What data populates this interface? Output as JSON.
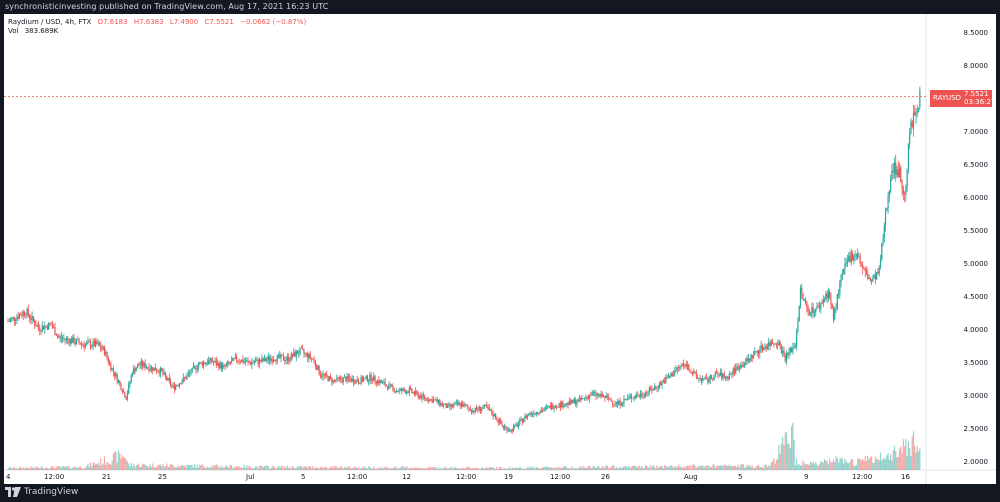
{
  "header": {
    "publisher_line": "synchronisticinvesting published on TradingView.com, Aug 17, 2021 16:23 UTC"
  },
  "legend": {
    "symbol": "Raydium / USD, 4h, FTX",
    "open": "O7.6183",
    "high": "H7.6383",
    "low": "L7.4900",
    "close": "C7.5521",
    "change": "−0.0662 (−0.87%)",
    "volume_label": "Vol",
    "volume_value": "383.689K"
  },
  "price_badge": {
    "symbol": "RAYUSD",
    "price": "7.5521",
    "countdown": "03:36:27",
    "color": "#ef5350"
  },
  "price_axis": [
    "8.5000",
    "8.0000",
    "7.5000",
    "7.0000",
    "6.5000",
    "6.0000",
    "5.5000",
    "5.0000",
    "4.5000",
    "4.0000",
    "3.5000",
    "3.0000",
    "2.5000",
    "2.0000"
  ],
  "time_axis": [
    "4",
    "12:00",
    "21",
    "25",
    "Jul",
    "5",
    "12:00",
    "12",
    "12:00",
    "19",
    "12:00",
    "26",
    "Aug",
    "5",
    "9",
    "12:00",
    "16"
  ],
  "footer": {
    "brand": "TradingView",
    "logo_icon": "tradingview-logo-icon"
  },
  "colors": {
    "up": "#26a69a",
    "down": "#ef5350",
    "background": "#131722",
    "pane": "#ffffff"
  },
  "chart_data": {
    "type": "candlestick",
    "title": "Raydium / USD, 4h, FTX",
    "ylim": [
      1.9,
      8.8
    ],
    "y_ticks": [
      2.0,
      2.5,
      3.0,
      3.5,
      4.0,
      4.5,
      5.0,
      5.5,
      6.0,
      6.5,
      7.0,
      7.5,
      8.0,
      8.5
    ],
    "last_price": 7.5521,
    "close_path": [
      [
        0,
        4.15
      ],
      [
        14,
        4.3
      ],
      [
        24,
        4.05
      ],
      [
        34,
        4.1
      ],
      [
        40,
        3.9
      ],
      [
        52,
        3.85
      ],
      [
        60,
        3.8
      ],
      [
        70,
        3.8
      ],
      [
        76,
        3.7
      ],
      [
        80,
        3.5
      ],
      [
        88,
        3.2
      ],
      [
        93,
        3.0
      ],
      [
        98,
        3.4
      ],
      [
        104,
        3.5
      ],
      [
        112,
        3.45
      ],
      [
        120,
        3.4
      ],
      [
        130,
        3.15
      ],
      [
        140,
        3.3
      ],
      [
        150,
        3.5
      ],
      [
        160,
        3.55
      ],
      [
        170,
        3.45
      ],
      [
        180,
        3.58
      ],
      [
        190,
        3.52
      ],
      [
        200,
        3.55
      ],
      [
        210,
        3.6
      ],
      [
        220,
        3.58
      ],
      [
        230,
        3.7
      ],
      [
        240,
        3.58
      ],
      [
        246,
        3.35
      ],
      [
        256,
        3.25
      ],
      [
        266,
        3.28
      ],
      [
        276,
        3.25
      ],
      [
        286,
        3.3
      ],
      [
        296,
        3.2
      ],
      [
        306,
        3.1
      ],
      [
        316,
        3.1
      ],
      [
        326,
        3.0
      ],
      [
        336,
        2.95
      ],
      [
        346,
        2.85
      ],
      [
        356,
        2.9
      ],
      [
        366,
        2.8
      ],
      [
        376,
        2.85
      ],
      [
        384,
        2.7
      ],
      [
        390,
        2.55
      ],
      [
        396,
        2.5
      ],
      [
        402,
        2.6
      ],
      [
        410,
        2.75
      ],
      [
        420,
        2.8
      ],
      [
        430,
        2.88
      ],
      [
        440,
        2.9
      ],
      [
        450,
        2.95
      ],
      [
        460,
        3.05
      ],
      [
        470,
        3.0
      ],
      [
        480,
        2.9
      ],
      [
        490,
        3.0
      ],
      [
        500,
        3.05
      ],
      [
        510,
        3.15
      ],
      [
        520,
        3.3
      ],
      [
        528,
        3.45
      ],
      [
        534,
        3.5
      ],
      [
        542,
        3.3
      ],
      [
        550,
        3.25
      ],
      [
        558,
        3.35
      ],
      [
        566,
        3.3
      ],
      [
        574,
        3.45
      ],
      [
        582,
        3.55
      ],
      [
        590,
        3.7
      ],
      [
        598,
        3.8
      ],
      [
        606,
        3.85
      ],
      [
        612,
        3.6
      ],
      [
        620,
        3.8
      ],
      [
        624,
        4.6
      ],
      [
        630,
        4.3
      ],
      [
        638,
        4.35
      ],
      [
        646,
        4.6
      ],
      [
        650,
        4.2
      ],
      [
        656,
        4.8
      ],
      [
        662,
        5.1
      ],
      [
        668,
        5.2
      ],
      [
        674,
        4.9
      ],
      [
        680,
        4.75
      ],
      [
        686,
        4.9
      ],
      [
        690,
        5.6
      ],
      [
        696,
        6.5
      ],
      [
        702,
        6.4
      ],
      [
        706,
        6.0
      ],
      [
        710,
        7.0
      ],
      [
        714,
        7.3
      ],
      [
        718,
        7.55
      ]
    ],
    "volume_path": [
      [
        0,
        0.02
      ],
      [
        60,
        0.03
      ],
      [
        92,
        0.15
      ],
      [
        95,
        0.05
      ],
      [
        200,
        0.03
      ],
      [
        380,
        0.02
      ],
      [
        460,
        0.03
      ],
      [
        600,
        0.04
      ],
      [
        618,
        0.38
      ],
      [
        620,
        0.09
      ],
      [
        640,
        0.06
      ],
      [
        650,
        0.1
      ],
      [
        660,
        0.07
      ],
      [
        690,
        0.12
      ],
      [
        700,
        0.2
      ],
      [
        710,
        0.25
      ],
      [
        714,
        0.33
      ],
      [
        718,
        0.16
      ]
    ]
  }
}
